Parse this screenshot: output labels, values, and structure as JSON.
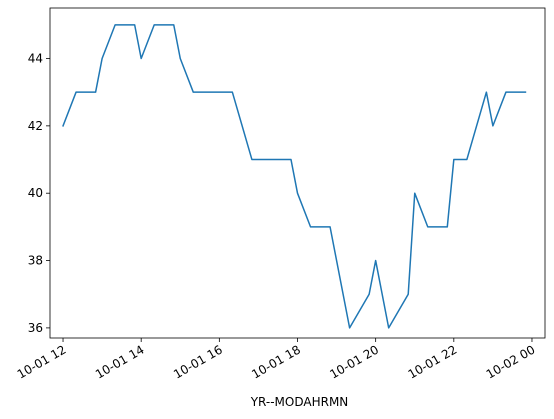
{
  "chart_data": {
    "type": "line",
    "title": "",
    "xlabel": "YR--MODAHRMN",
    "ylabel": "",
    "grid": false,
    "legend": "none",
    "x_is_datetime": true,
    "xlim": [
      "2023-10-01 11:40",
      "2023-10-02 00:20"
    ],
    "ylim": [
      35.7,
      45.5
    ],
    "x_tick_values": [
      "2023-10-01 12:00",
      "2023-10-01 14:00",
      "2023-10-01 16:00",
      "2023-10-01 18:00",
      "2023-10-01 20:00",
      "2023-10-01 22:00",
      "2023-10-02 00:00"
    ],
    "x_tick_labels": [
      "10-01 12",
      "10-01 14",
      "10-01 16",
      "10-01 18",
      "10-01 20",
      "10-01 22",
      "10-02 00"
    ],
    "y_ticks": [
      36,
      38,
      40,
      42,
      44
    ],
    "y_tick_labels": [
      "36",
      "38",
      "40",
      "42",
      "44"
    ],
    "series": [
      {
        "color": "#1f77b4",
        "x": [
          "2023-10-01 12:00",
          "2023-10-01 12:20",
          "2023-10-01 12:50",
          "2023-10-01 13:00",
          "2023-10-01 13:20",
          "2023-10-01 13:50",
          "2023-10-01 14:00",
          "2023-10-01 14:20",
          "2023-10-01 14:50",
          "2023-10-01 15:00",
          "2023-10-01 15:20",
          "2023-10-01 16:20",
          "2023-10-01 16:50",
          "2023-10-01 17:50",
          "2023-10-01 18:00",
          "2023-10-01 18:20",
          "2023-10-01 18:50",
          "2023-10-01 19:20",
          "2023-10-01 19:50",
          "2023-10-01 20:00",
          "2023-10-01 20:20",
          "2023-10-01 20:50",
          "2023-10-01 21:00",
          "2023-10-01 21:20",
          "2023-10-01 21:50",
          "2023-10-01 22:00",
          "2023-10-01 22:20",
          "2023-10-01 22:50",
          "2023-10-01 23:00",
          "2023-10-01 23:20",
          "2023-10-01 23:50"
        ],
        "values": [
          42,
          43,
          43,
          44,
          45,
          45,
          44,
          45,
          45,
          44,
          43,
          43,
          41,
          41,
          40,
          39,
          39,
          36,
          37,
          38,
          36,
          37,
          40,
          39,
          39,
          41,
          41,
          43,
          42,
          43,
          43
        ]
      }
    ]
  }
}
